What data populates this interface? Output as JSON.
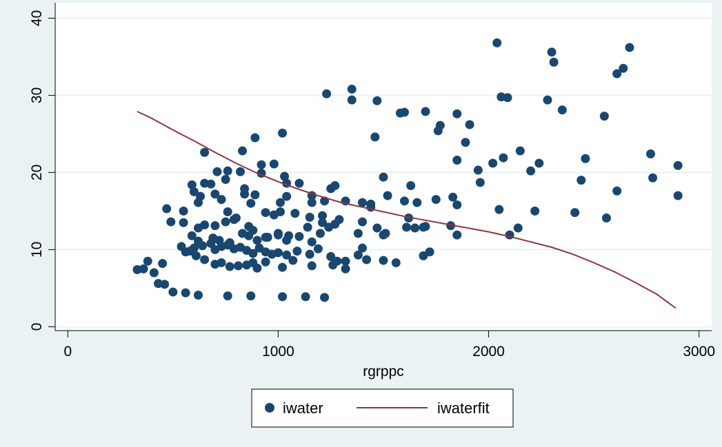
{
  "chart_data": {
    "type": "scatter",
    "title": "",
    "xlabel": "rgrppc",
    "ylabel": "",
    "xlim": [
      -60,
      3060
    ],
    "ylim": [
      -0.5,
      42
    ],
    "x_ticks": [
      0,
      1000,
      2000,
      3000
    ],
    "y_ticks": [
      0,
      10,
      20,
      30,
      40
    ],
    "grid": "horizontal",
    "legend_position": "bottom",
    "colors": {
      "background": "#eaf2f3",
      "plot_area": "#ffffff",
      "points": "#1a476f",
      "fit_line": "#90353b",
      "grid": "#eaf2f3"
    },
    "series": [
      {
        "name": "iwater",
        "kind": "scatter",
        "points": [
          [
            2040,
            36.8
          ],
          [
            2300,
            35.6
          ],
          [
            2670,
            36.2
          ],
          [
            2310,
            34.3
          ],
          [
            2640,
            33.5
          ],
          [
            2610,
            32.8
          ],
          [
            1230,
            30.2
          ],
          [
            1350,
            30.8
          ],
          [
            1350,
            29.4
          ],
          [
            1470,
            29.3
          ],
          [
            2060,
            29.8
          ],
          [
            2090,
            29.7
          ],
          [
            2280,
            29.4
          ],
          [
            1580,
            27.7
          ],
          [
            1600,
            27.8
          ],
          [
            1700,
            27.9
          ],
          [
            1850,
            27.6
          ],
          [
            2350,
            28.1
          ],
          [
            2550,
            27.3
          ],
          [
            1760,
            25.4
          ],
          [
            1770,
            26.1
          ],
          [
            1910,
            26.2
          ],
          [
            1020,
            25.1
          ],
          [
            890,
            24.5
          ],
          [
            1460,
            24.6
          ],
          [
            1890,
            23.9
          ],
          [
            650,
            22.6
          ],
          [
            830,
            22.8
          ],
          [
            1850,
            21.6
          ],
          [
            2070,
            21.9
          ],
          [
            2150,
            22.8
          ],
          [
            2240,
            21.2
          ],
          [
            2460,
            21.8
          ],
          [
            2770,
            22.4
          ],
          [
            2020,
            21.2
          ],
          [
            2900,
            20.9
          ],
          [
            710,
            20.1
          ],
          [
            760,
            20.2
          ],
          [
            820,
            20.1
          ],
          [
            920,
            21.0
          ],
          [
            980,
            21.1
          ],
          [
            1030,
            19.5
          ],
          [
            1500,
            19.4
          ],
          [
            1950,
            20.3
          ],
          [
            2200,
            20.2
          ],
          [
            2780,
            19.3
          ],
          [
            590,
            18.4
          ],
          [
            650,
            18.6
          ],
          [
            680,
            18.5
          ],
          [
            750,
            19.1
          ],
          [
            840,
            17.9
          ],
          [
            920,
            19.9
          ],
          [
            1040,
            18.6
          ],
          [
            1100,
            18.6
          ],
          [
            1250,
            17.9
          ],
          [
            1270,
            18.3
          ],
          [
            1160,
            17.0
          ],
          [
            1630,
            18.3
          ],
          [
            1960,
            18.7
          ],
          [
            2440,
            19.0
          ],
          [
            2610,
            17.6
          ],
          [
            2900,
            17.0
          ],
          [
            600,
            17.5
          ],
          [
            630,
            16.9
          ],
          [
            700,
            17.2
          ],
          [
            730,
            16.5
          ],
          [
            840,
            17.2
          ],
          [
            890,
            17.1
          ],
          [
            1010,
            16.1
          ],
          [
            1040,
            16.9
          ],
          [
            1160,
            16.1
          ],
          [
            1220,
            16.3
          ],
          [
            1320,
            16.3
          ],
          [
            1400,
            16.1
          ],
          [
            1440,
            15.9
          ],
          [
            1520,
            17.0
          ],
          [
            1600,
            16.3
          ],
          [
            1620,
            14.1
          ],
          [
            1660,
            16.1
          ],
          [
            1750,
            16.5
          ],
          [
            1830,
            16.8
          ],
          [
            1850,
            15.8
          ],
          [
            470,
            15.3
          ],
          [
            550,
            15.0
          ],
          [
            620,
            16.1
          ],
          [
            760,
            14.9
          ],
          [
            800,
            14.1
          ],
          [
            870,
            16.0
          ],
          [
            940,
            14.8
          ],
          [
            980,
            14.5
          ],
          [
            1010,
            14.9
          ],
          [
            1080,
            14.7
          ],
          [
            1150,
            14.2
          ],
          [
            1210,
            14.4
          ],
          [
            1290,
            13.9
          ],
          [
            1400,
            13.6
          ],
          [
            1440,
            15.5
          ],
          [
            1700,
            13.0
          ],
          [
            2050,
            15.2
          ],
          [
            2220,
            15.0
          ],
          [
            2410,
            14.8
          ],
          [
            2560,
            14.1
          ],
          [
            490,
            13.6
          ],
          [
            550,
            13.5
          ],
          [
            620,
            12.8
          ],
          [
            650,
            13.2
          ],
          [
            700,
            13.1
          ],
          [
            750,
            13.6
          ],
          [
            790,
            13.9
          ],
          [
            830,
            12.1
          ],
          [
            860,
            13.0
          ],
          [
            880,
            12.5
          ],
          [
            950,
            11.6
          ],
          [
            1000,
            12.1
          ],
          [
            1050,
            11.8
          ],
          [
            1140,
            12.9
          ],
          [
            1210,
            13.5
          ],
          [
            1240,
            12.9
          ],
          [
            1270,
            13.3
          ],
          [
            1380,
            12.1
          ],
          [
            1470,
            12.8
          ],
          [
            1510,
            12.1
          ],
          [
            1610,
            12.9
          ],
          [
            1650,
            12.8
          ],
          [
            1690,
            12.9
          ],
          [
            1820,
            13.1
          ],
          [
            2140,
            12.8
          ],
          [
            590,
            11.8
          ],
          [
            620,
            11.1
          ],
          [
            690,
            11.5
          ],
          [
            720,
            11.2
          ],
          [
            770,
            10.9
          ],
          [
            820,
            10.3
          ],
          [
            860,
            11.8
          ],
          [
            900,
            11.2
          ],
          [
            940,
            11.6
          ],
          [
            1000,
            11.9
          ],
          [
            1040,
            11.2
          ],
          [
            1100,
            11.7
          ],
          [
            1160,
            11.0
          ],
          [
            1200,
            12.1
          ],
          [
            1500,
            11.9
          ],
          [
            1850,
            11.9
          ],
          [
            2100,
            11.9
          ],
          [
            540,
            10.4
          ],
          [
            580,
            9.8
          ],
          [
            600,
            10.2
          ],
          [
            640,
            10.5
          ],
          [
            680,
            10.8
          ],
          [
            700,
            10.0
          ],
          [
            730,
            10.4
          ],
          [
            760,
            10.6
          ],
          [
            790,
            10.1
          ],
          [
            850,
            9.9
          ],
          [
            880,
            9.5
          ],
          [
            910,
            10.2
          ],
          [
            940,
            9.7
          ],
          [
            970,
            9.4
          ],
          [
            1000,
            9.6
          ],
          [
            1040,
            9.3
          ],
          [
            1090,
            9.8
          ],
          [
            1150,
            9.4
          ],
          [
            1190,
            10.1
          ],
          [
            1250,
            9.1
          ],
          [
            1320,
            8.5
          ],
          [
            1380,
            9.3
          ],
          [
            1400,
            10.2
          ],
          [
            1690,
            9.2
          ],
          [
            1720,
            9.7
          ],
          [
            330,
            7.4
          ],
          [
            360,
            7.5
          ],
          [
            380,
            8.5
          ],
          [
            410,
            7.0
          ],
          [
            450,
            8.2
          ],
          [
            560,
            9.7
          ],
          [
            610,
            9.2
          ],
          [
            650,
            8.7
          ],
          [
            700,
            8.1
          ],
          [
            730,
            8.3
          ],
          [
            770,
            7.8
          ],
          [
            810,
            7.9
          ],
          [
            850,
            8.0
          ],
          [
            880,
            8.3
          ],
          [
            900,
            7.6
          ],
          [
            940,
            8.4
          ],
          [
            1020,
            7.7
          ],
          [
            1070,
            8.6
          ],
          [
            1160,
            7.9
          ],
          [
            1260,
            8.0
          ],
          [
            1280,
            8.5
          ],
          [
            1320,
            7.5
          ],
          [
            1420,
            8.7
          ],
          [
            1500,
            8.6
          ],
          [
            1560,
            8.3
          ],
          [
            430,
            5.6
          ],
          [
            460,
            5.5
          ],
          [
            500,
            4.5
          ],
          [
            560,
            4.4
          ],
          [
            620,
            4.1
          ],
          [
            760,
            4.0
          ],
          [
            870,
            4.0
          ],
          [
            1020,
            3.9
          ],
          [
            1130,
            3.9
          ],
          [
            1220,
            3.8
          ]
        ]
      },
      {
        "name": "iwaterfit",
        "kind": "line",
        "points": [
          [
            330,
            27.9
          ],
          [
            400,
            27.0
          ],
          [
            500,
            25.5
          ],
          [
            600,
            24.1
          ],
          [
            700,
            22.6
          ],
          [
            800,
            21.2
          ],
          [
            900,
            19.9
          ],
          [
            1000,
            18.8
          ],
          [
            1100,
            17.8
          ],
          [
            1200,
            16.9
          ],
          [
            1300,
            16.1
          ],
          [
            1400,
            15.5
          ],
          [
            1500,
            14.9
          ],
          [
            1600,
            14.3
          ],
          [
            1700,
            13.8
          ],
          [
            1800,
            13.3
          ],
          [
            1900,
            12.8
          ],
          [
            2000,
            12.3
          ],
          [
            2100,
            11.7
          ],
          [
            2200,
            11.0
          ],
          [
            2300,
            10.3
          ],
          [
            2400,
            9.4
          ],
          [
            2500,
            8.3
          ],
          [
            2600,
            7.1
          ],
          [
            2700,
            5.7
          ],
          [
            2800,
            4.2
          ],
          [
            2890,
            2.4
          ]
        ]
      }
    ]
  }
}
